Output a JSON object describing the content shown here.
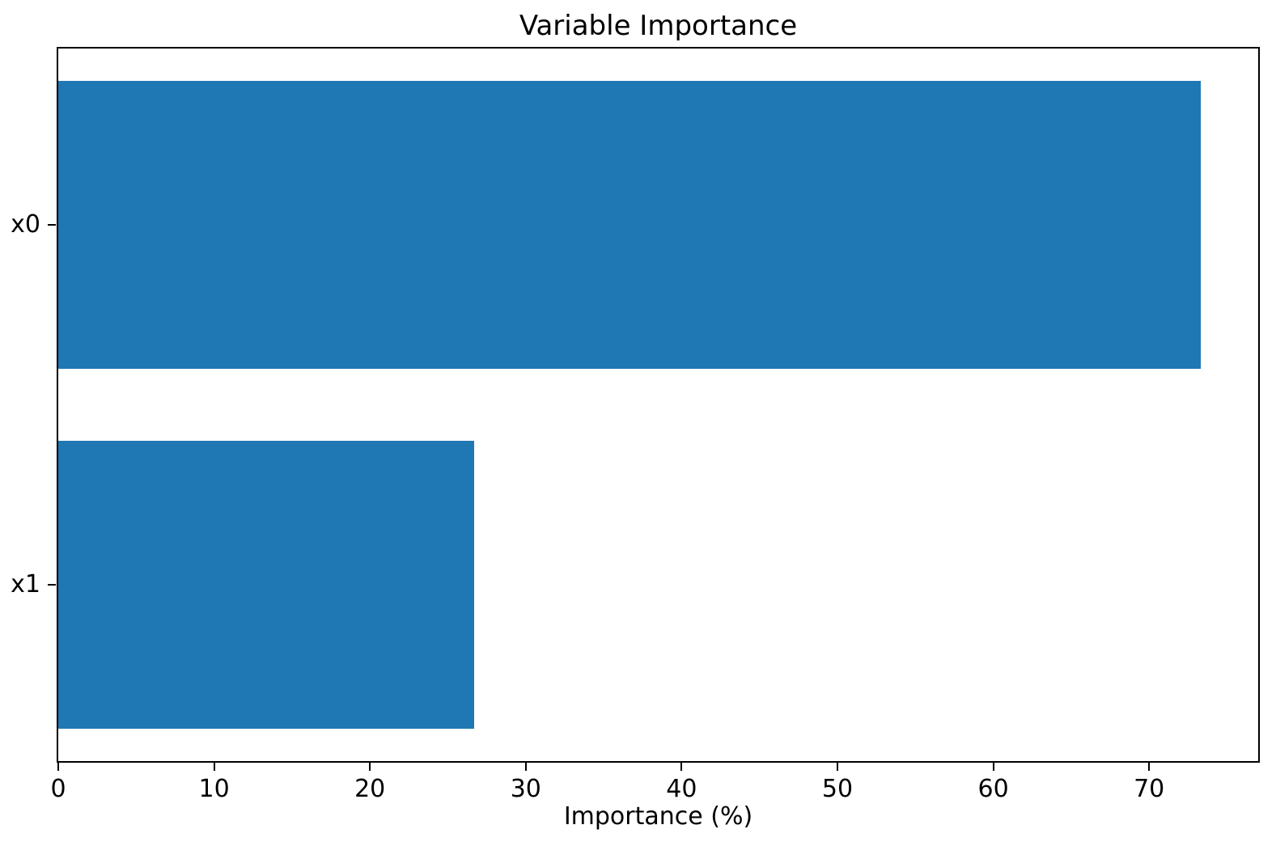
{
  "chart_data": {
    "type": "bar",
    "orientation": "horizontal",
    "title": "Variable Importance",
    "xlabel": "Importance (%)",
    "categories": [
      "x0",
      "x1"
    ],
    "values": [
      73.3,
      26.7
    ],
    "xlim": [
      0,
      77
    ],
    "xticks": [
      0,
      10,
      20,
      30,
      40,
      50,
      60,
      70
    ],
    "bar_color": "#1f77b4",
    "bar_height_frac": 0.8,
    "grid": false,
    "legend": "none",
    "background_color": "#ffffff",
    "spine_color": "#000000"
  }
}
